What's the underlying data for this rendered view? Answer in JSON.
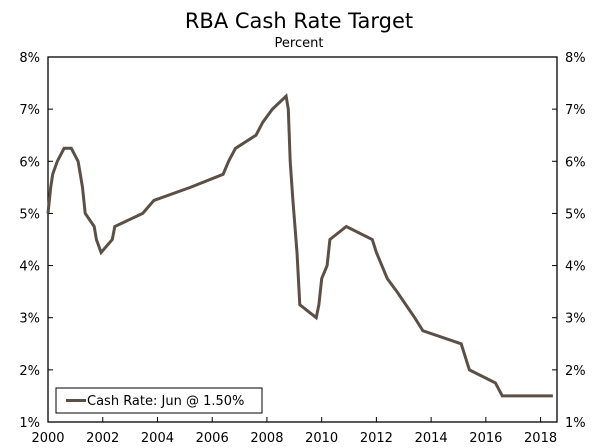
{
  "chart_data": {
    "type": "line",
    "title": "RBA Cash Rate Target",
    "subtitle": "Percent",
    "xlabel": "",
    "ylabel": "",
    "xlim": [
      2000,
      2018.6
    ],
    "ylim": [
      1,
      8
    ],
    "x_ticks": [
      2000,
      2002,
      2004,
      2006,
      2008,
      2010,
      2012,
      2014,
      2016,
      2018
    ],
    "y_ticks": [
      1,
      2,
      3,
      4,
      5,
      6,
      7,
      8
    ],
    "y_tick_labels": [
      "1%",
      "2%",
      "3%",
      "4%",
      "5%",
      "6%",
      "7%",
      "8%"
    ],
    "grid": false,
    "legend_position": "bottom-left",
    "line_color": "#5c4f45",
    "series": [
      {
        "name": "Cash Rate: Jun @ 1.50%",
        "x": [
          2000.0,
          2000.1,
          2000.17,
          2000.34,
          2000.59,
          2000.67,
          2000.85,
          2001.1,
          2001.18,
          2001.26,
          2001.36,
          2001.69,
          2001.77,
          2001.94,
          2002.35,
          2002.44,
          2003.46,
          2003.87,
          2005.2,
          2006.4,
          2006.6,
          2006.85,
          2007.6,
          2007.85,
          2008.2,
          2008.7,
          2008.78,
          2008.85,
          2008.95,
          2009.1,
          2009.2,
          2009.8,
          2009.9,
          2010.0,
          2010.2,
          2010.3,
          2010.9,
          2011.85,
          2012.0,
          2012.4,
          2012.75,
          2013.4,
          2013.7,
          2015.1,
          2015.4,
          2016.35,
          2016.6,
          2018.45
        ],
        "y": [
          5.0,
          5.5,
          5.75,
          6.0,
          6.25,
          6.25,
          6.25,
          6.0,
          5.75,
          5.5,
          5.0,
          4.75,
          4.5,
          4.25,
          4.5,
          4.75,
          5.0,
          5.25,
          5.5,
          5.75,
          6.0,
          6.25,
          6.5,
          6.75,
          7.0,
          7.25,
          7.0,
          6.0,
          5.25,
          4.25,
          3.25,
          3.0,
          3.25,
          3.75,
          4.0,
          4.5,
          4.75,
          4.5,
          4.25,
          3.75,
          3.5,
          3.0,
          2.75,
          2.5,
          2.0,
          1.75,
          1.5,
          1.5
        ]
      }
    ]
  }
}
